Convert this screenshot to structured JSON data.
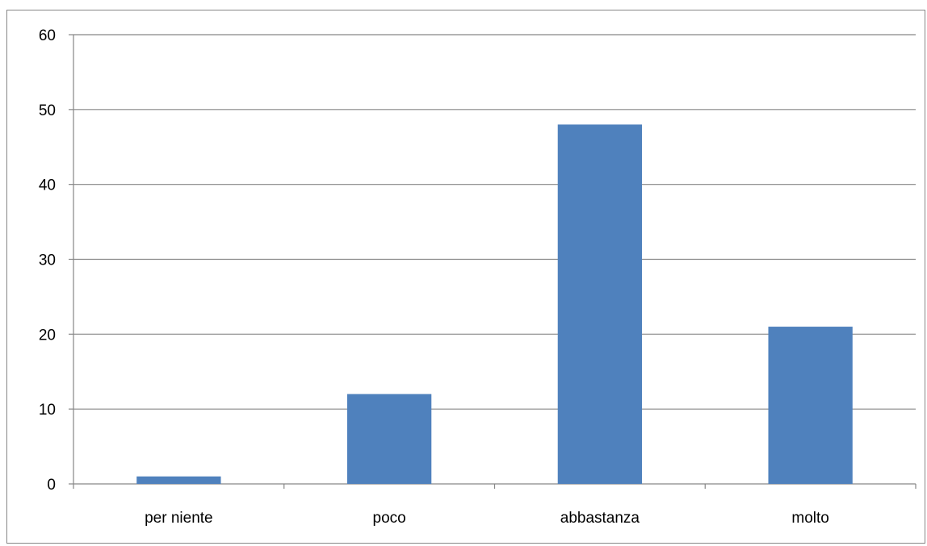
{
  "chart_data": {
    "type": "bar",
    "title": "",
    "xlabel": "",
    "ylabel": "",
    "categories": [
      "per niente",
      "poco",
      "abbastanza",
      "molto"
    ],
    "values": [
      1,
      12,
      48,
      21
    ],
    "ylim": [
      0,
      60
    ],
    "yticks": [
      0,
      10,
      20,
      30,
      40,
      50,
      60
    ],
    "grid": true,
    "legend": "none",
    "colors": {
      "bar": "#4f81bd",
      "gridline": "#868686",
      "axis": "#868686",
      "border": "#868686"
    }
  }
}
